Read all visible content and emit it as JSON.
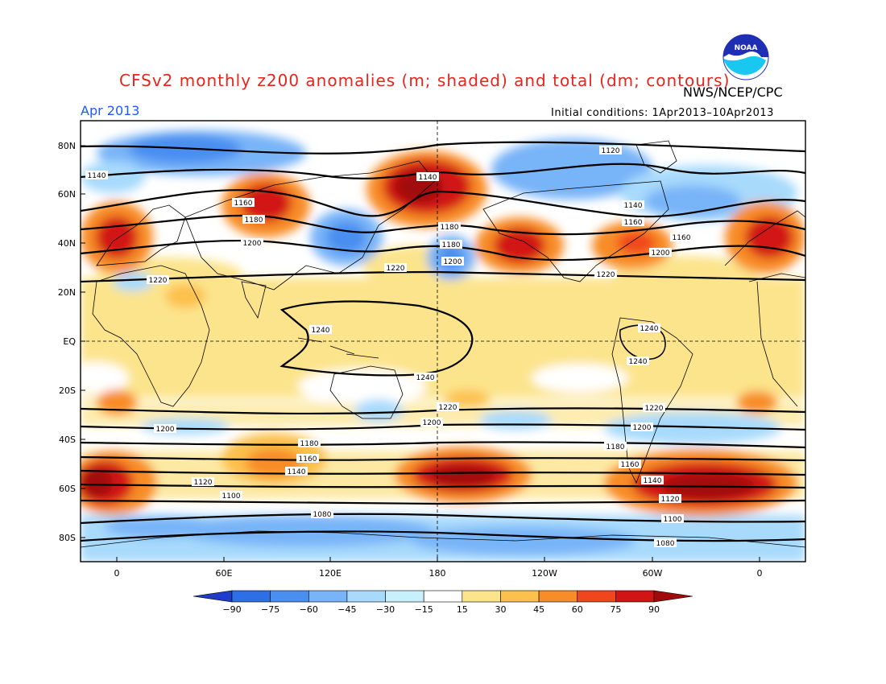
{
  "figure": {
    "title": "CFSv2 monthly z200 anomalies (m; shaded) and total (dm; contours)",
    "org": "NWS/NCEP/CPC",
    "month": "Apr 2013",
    "initial_conditions": "Initial conditions: 1Apr2013–10Apr2013",
    "logo_text": "NOAA"
  },
  "axes": {
    "lat_labels": [
      "80N",
      "60N",
      "40N",
      "20N",
      "EQ",
      "20S",
      "40S",
      "60S",
      "80S"
    ],
    "lon_labels": [
      "0",
      "60E",
      "120E",
      "180",
      "120W",
      "60W",
      "0"
    ]
  },
  "colorbar": {
    "ticks": [
      "−90",
      "−75",
      "−60",
      "−45",
      "−30",
      "−15",
      "15",
      "30",
      "45",
      "60",
      "75",
      "90"
    ],
    "colors": [
      "#1e3cc8",
      "#2e6ee6",
      "#4a8ef0",
      "#78b4f8",
      "#a8dafc",
      "#c8f0fc",
      "#ffffff",
      "#fce48c",
      "#fcc04c",
      "#f88c28",
      "#f0461e",
      "#d21414",
      "#a00a0a"
    ]
  },
  "contour_labels": [
    "1120",
    "1140",
    "1140",
    "1160",
    "1180",
    "1200",
    "1220",
    "1240",
    "1180",
    "1180",
    "1200",
    "1160",
    "1140",
    "1120",
    "1100",
    "1080",
    "1220",
    "1200",
    "1220",
    "1200",
    "1180",
    "1160",
    "1140",
    "1120",
    "1100",
    "1080",
    "1240",
    "1240",
    "1240",
    "1200",
    "1180",
    "1160",
    "1220",
    "1140",
    "1160",
    "1120"
  ]
}
